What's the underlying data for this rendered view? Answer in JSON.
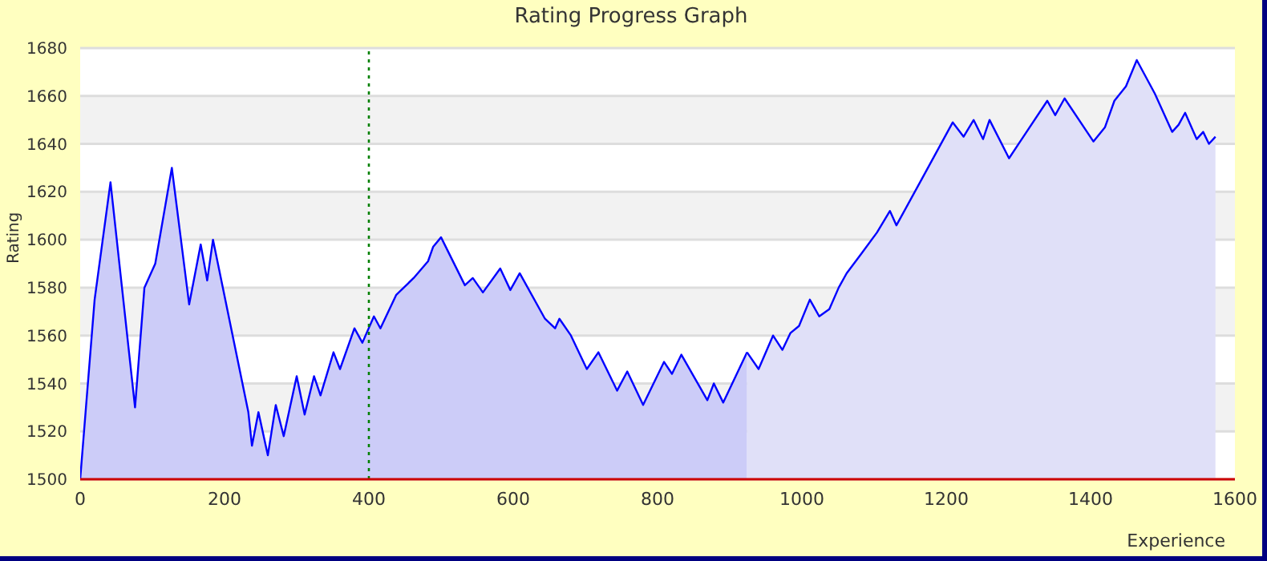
{
  "chart_data": {
    "type": "area",
    "title": "Rating Progress Graph",
    "xlabel": "Experience",
    "ylabel": "Rating",
    "series": [
      {
        "color": "#ccccf8",
        "x": [
          0,
          20,
          42,
          76,
          89,
          104,
          127,
          151,
          167,
          176,
          184,
          233,
          238,
          247,
          260,
          271,
          282,
          300,
          311,
          324,
          333,
          351,
          360,
          380,
          391,
          407,
          416,
          438,
          462,
          482,
          489,
          500,
          533,
          544,
          558,
          582,
          596,
          609,
          644,
          658,
          664,
          680,
          702,
          718,
          744,
          758,
          780,
          809,
          820,
          833,
          869,
          878,
          891,
          924
        ],
        "values": [
          1500,
          1575,
          1624,
          1530,
          1580,
          1590,
          1630,
          1573,
          1598,
          1583,
          1600,
          1528,
          1514,
          1528,
          1510,
          1531,
          1518,
          1543,
          1527,
          1543,
          1535,
          1553,
          1546,
          1563,
          1557,
          1568,
          1563,
          1577,
          1584,
          1591,
          1597,
          1601,
          1581,
          1584,
          1578,
          1588,
          1579,
          1586,
          1567,
          1563,
          1567,
          1560,
          1546,
          1553,
          1537,
          1545,
          1531,
          1549,
          1544,
          1552,
          1533,
          1540,
          1532,
          1553
        ]
      },
      {
        "color": "#e0e0f8",
        "x": [
          924,
          940,
          960,
          973,
          984,
          996,
          1011,
          1024,
          1038,
          1051,
          1062,
          1082,
          1104,
          1122,
          1131,
          1171,
          1209,
          1224,
          1238,
          1251,
          1260,
          1287,
          1340,
          1351,
          1364,
          1404,
          1420,
          1433,
          1449,
          1464,
          1489,
          1513,
          1522,
          1531,
          1547,
          1556,
          1564,
          1573
        ],
        "values": [
          1553,
          1546,
          1560,
          1554,
          1561,
          1564,
          1575,
          1568,
          1571,
          1580,
          1586,
          1594,
          1603,
          1612,
          1606,
          1628,
          1649,
          1643,
          1650,
          1642,
          1650,
          1634,
          1658,
          1652,
          1659,
          1641,
          1647,
          1658,
          1664,
          1675,
          1661,
          1645,
          1648,
          1653,
          1642,
          1645,
          1640,
          1643
        ]
      }
    ],
    "xlim": [
      0,
      1600
    ],
    "xticks": [
      0,
      200,
      400,
      600,
      800,
      1000,
      1200,
      1400,
      1600
    ],
    "ylim": [
      1500,
      1680
    ],
    "yticks": [
      1500,
      1520,
      1540,
      1560,
      1580,
      1600,
      1620,
      1640,
      1660,
      1680
    ],
    "grid": "y",
    "ref_lines": [
      {
        "axis": "x",
        "value": 400,
        "color": "#008000",
        "line_style": "dotted"
      }
    ]
  }
}
